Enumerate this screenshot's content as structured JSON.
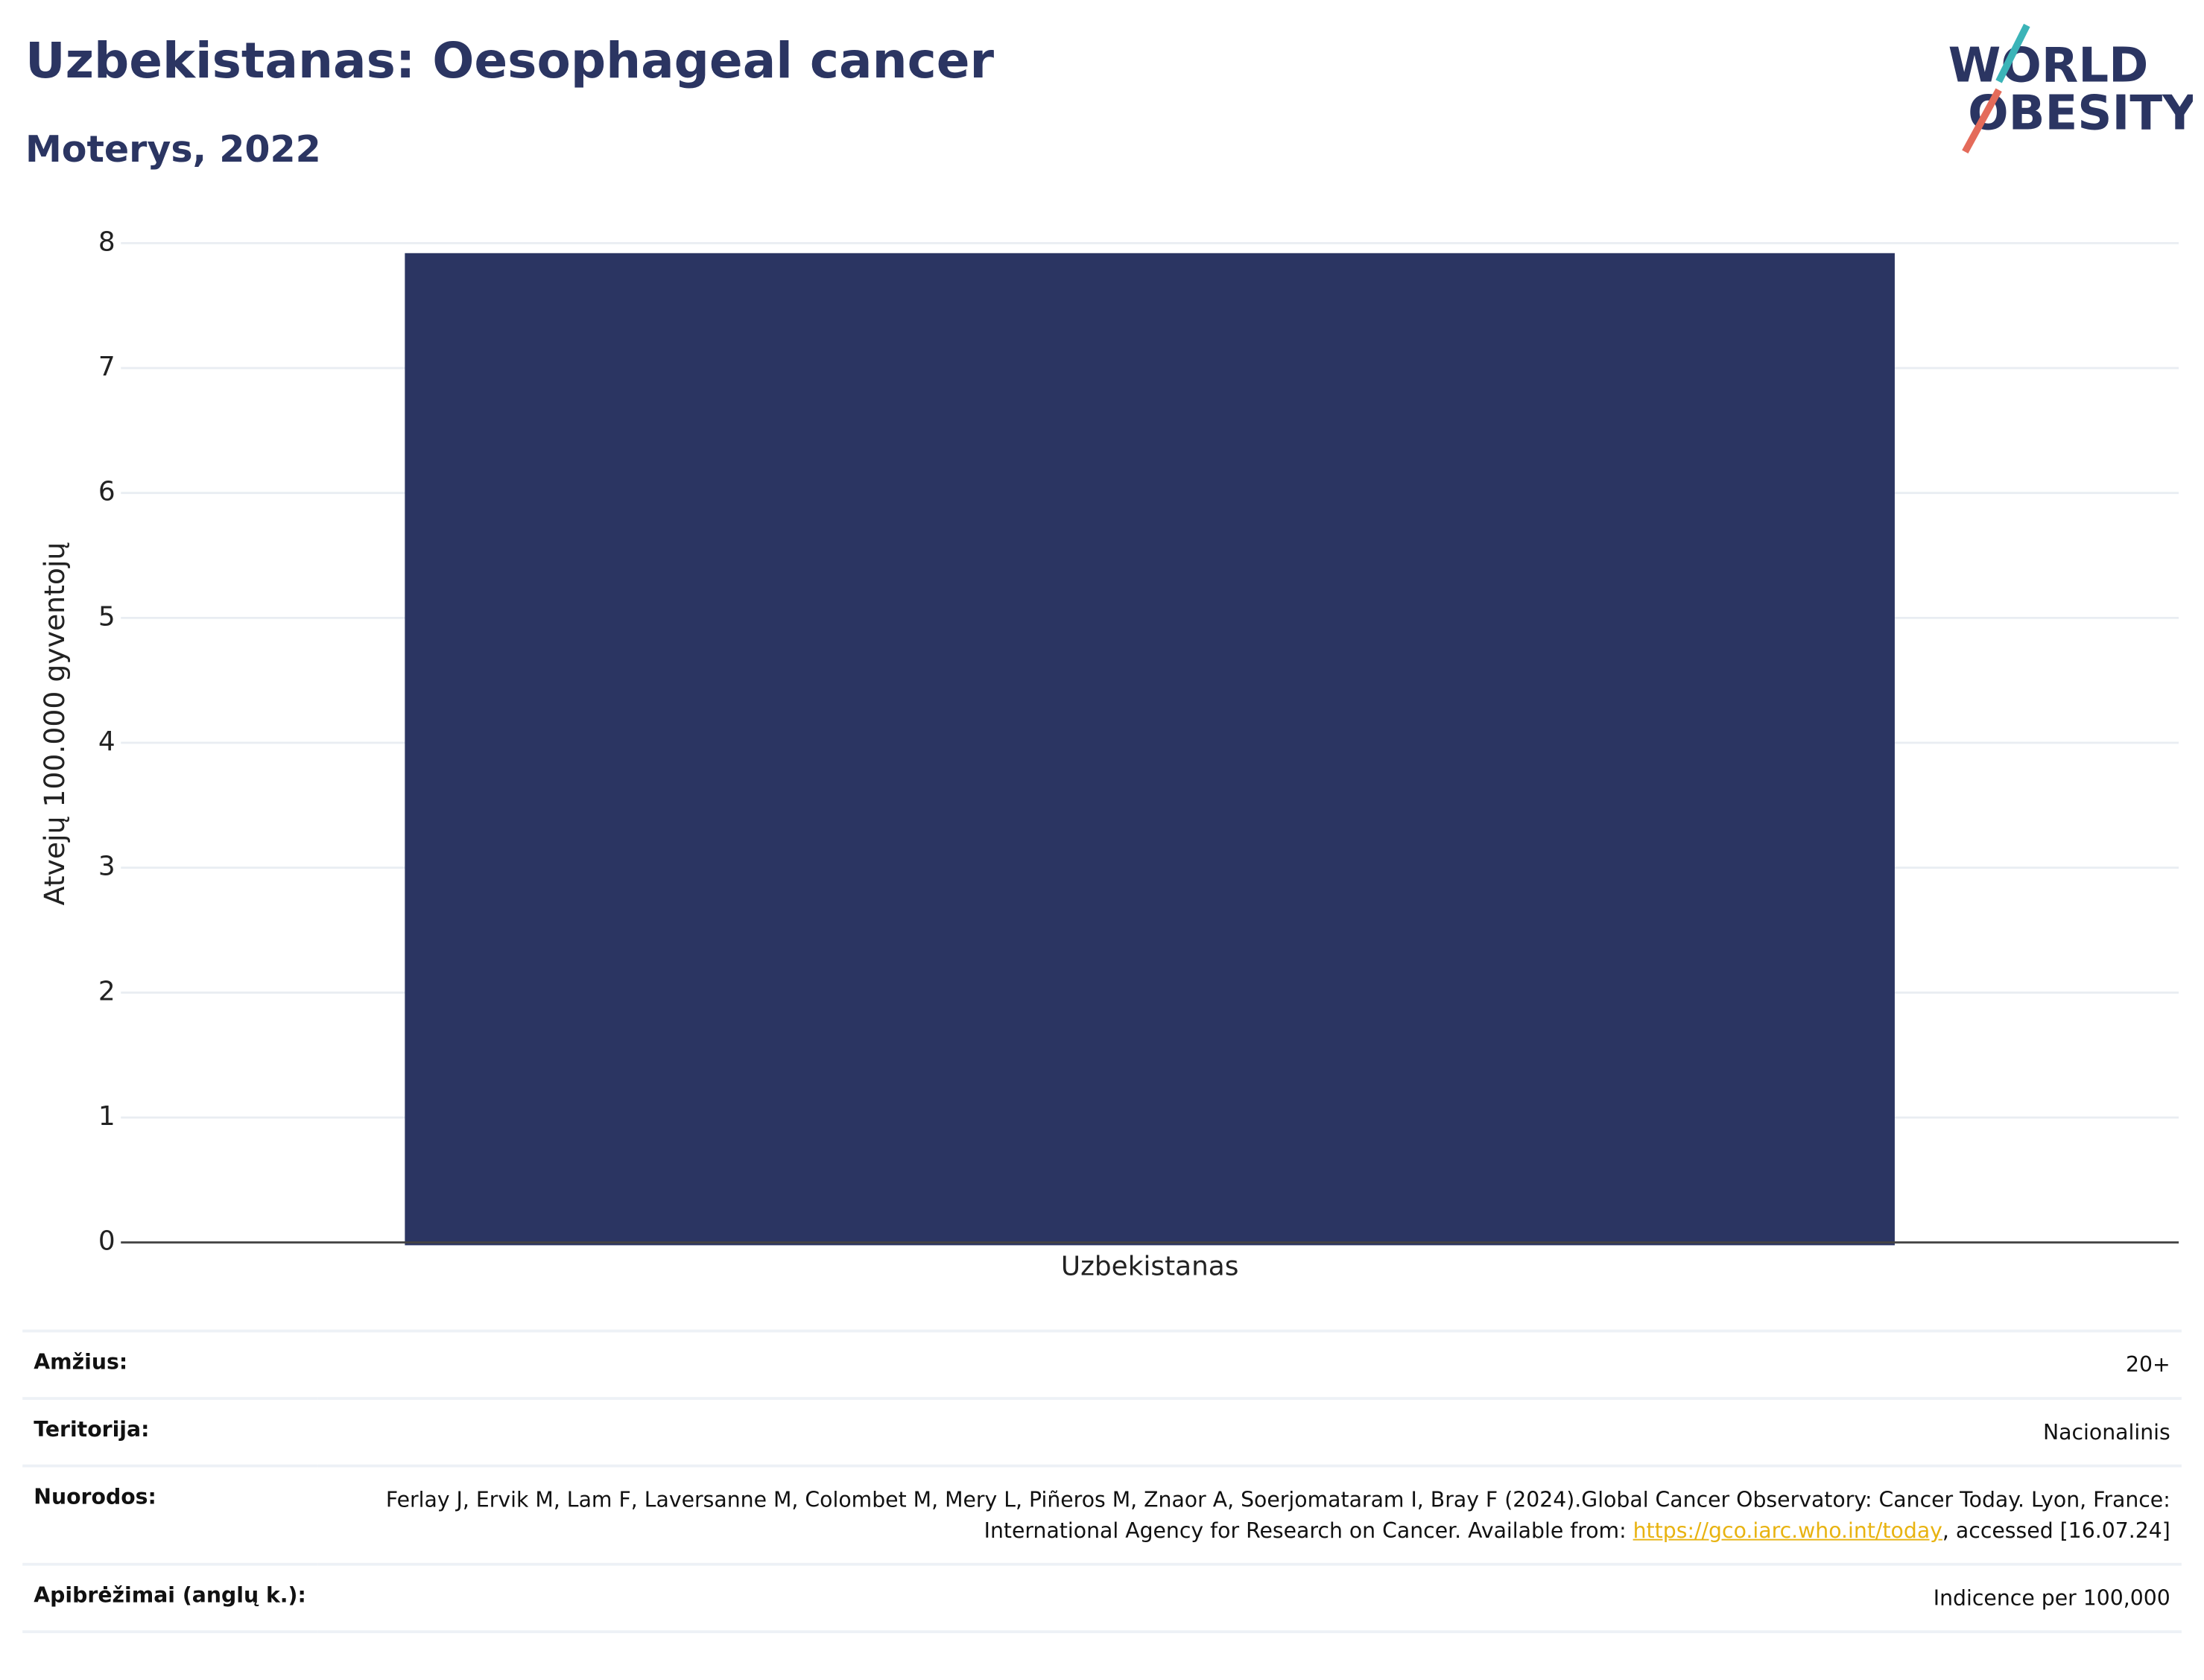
{
  "header": {
    "title": "Uzbekistanas: Oesophageal cancer",
    "subtitle": "Moterys, 2022",
    "logo": [
      "WORLD",
      "OBESITY"
    ]
  },
  "chart_data": {
    "type": "bar",
    "categories": [
      "Uzbekistanas"
    ],
    "values": [
      7.92
    ],
    "color": "#2b3562",
    "ylabel": "Atvejų 100.000 gyventojų",
    "ylim": [
      0,
      8
    ],
    "yticks": [
      0,
      1,
      2,
      3,
      4,
      5,
      6,
      7,
      8
    ],
    "grid": true
  },
  "table": {
    "rows": [
      [
        "Amžius:",
        "20+"
      ],
      [
        "Teritorija:",
        "Nacionalinis"
      ],
      [
        "Nuorodos:",
        "Ferlay J, Ervik M, Lam F, Laversanne M, Colombet M, Mery L, Piñeros M, Znaor A, Soerjomataram I, Bray F (2024).Global Cancer Observatory: Cancer Today. Lyon, France: International Agency for Research on Cancer. Available from: ",
        "https://gco.iarc.who.int/today",
        ", accessed [16.07.24]"
      ],
      [
        "Apibrėžimai (anglų k.):",
        "Indicence per 100,000"
      ]
    ]
  }
}
